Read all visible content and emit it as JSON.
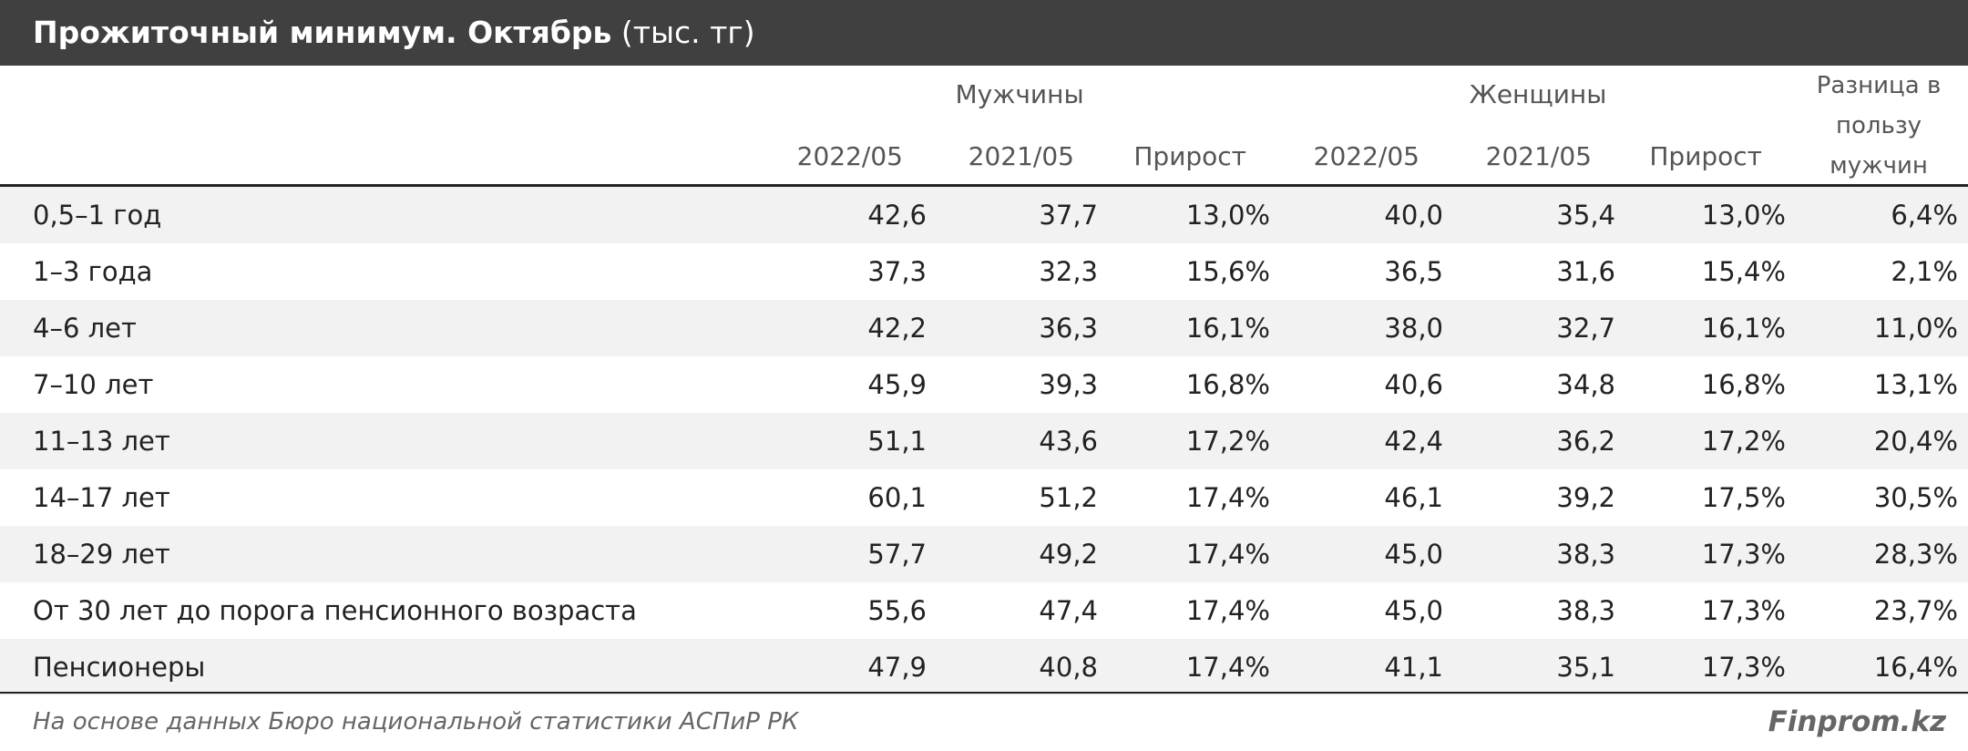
{
  "header": {
    "title": "Прожиточный минимум. Октябрь",
    "unit": "(тыс. тг)"
  },
  "table": {
    "groups": [
      "Мужчины",
      "Женщины"
    ],
    "columns": [
      "2022/05",
      "2021/05",
      "Прирост",
      "2022/05",
      "2021/05",
      "Прирост",
      "Разница в пользу мужчин"
    ],
    "rows": [
      [
        "0,5–1 год",
        "42,6",
        "37,7",
        "13,0%",
        "40,0",
        "35,4",
        "13,0%",
        "6,4%"
      ],
      [
        "1–3 года",
        "37,3",
        "32,3",
        "15,6%",
        "36,5",
        "31,6",
        "15,4%",
        "2,1%"
      ],
      [
        "4–6 лет",
        "42,2",
        "36,3",
        "16,1%",
        "38,0",
        "32,7",
        "16,1%",
        "11,0%"
      ],
      [
        "7–10 лет",
        "45,9",
        "39,3",
        "16,8%",
        "40,6",
        "34,8",
        "16,8%",
        "13,1%"
      ],
      [
        "11–13 лет",
        "51,1",
        "43,6",
        "17,2%",
        "42,4",
        "36,2",
        "17,2%",
        "20,4%"
      ],
      [
        "14–17 лет",
        "60,1",
        "51,2",
        "17,4%",
        "46,1",
        "39,2",
        "17,5%",
        "30,5%"
      ],
      [
        "18–29 лет",
        "57,7",
        "49,2",
        "17,4%",
        "45,0",
        "38,3",
        "17,3%",
        "28,3%"
      ],
      [
        "От 30 лет до порога пенсионного возраста",
        "55,6",
        "47,4",
        "17,4%",
        "45,0",
        "38,3",
        "17,3%",
        "23,7%"
      ],
      [
        "Пенсионеры",
        "47,9",
        "40,8",
        "17,4%",
        "41,1",
        "35,1",
        "17,3%",
        "16,4%"
      ]
    ]
  },
  "footer": {
    "source": "На основе данных Бюро национальной статистики АСПиР РК",
    "brand": "Finprom.kz"
  }
}
